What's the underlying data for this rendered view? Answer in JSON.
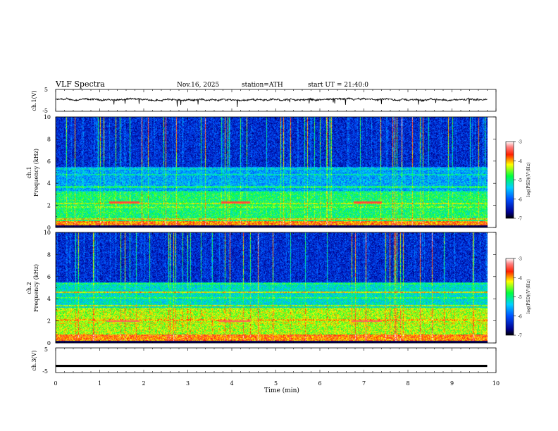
{
  "header": {
    "title": "VLF Spectra",
    "date": "Nov.16, 2025",
    "station": "station=ATH",
    "start": "start UT = 21:40:0"
  },
  "chart_data": [
    {
      "type": "line",
      "ylabel": "ch.1(V)",
      "xlim": [
        0,
        10
      ],
      "ylim": [
        -5,
        5
      ],
      "y_ticks": [
        "5",
        "-5"
      ],
      "description_values": {
        "baseline_v": 0.3,
        "noise_amplitude_v": 0.6
      }
    },
    {
      "type": "heatmap",
      "ylabel": "ch.1\nFrequency (kHz)",
      "ylabel_lines": [
        "ch.1",
        "Frequency (kHz)"
      ],
      "xlim": [
        0,
        9.8
      ],
      "ylim": [
        0,
        10
      ],
      "y_ticks": [
        "0",
        "2",
        "4",
        "6",
        "8",
        "10"
      ],
      "colorbar": {
        "label": "log(PSD)(V²/Hz)",
        "range": [
          -7,
          -3
        ],
        "ticks": [
          "-3",
          "-4",
          "-5",
          "-6",
          "-7"
        ]
      },
      "bands_khz": [
        {
          "f": 0.8,
          "v": -4.2
        },
        {
          "f": 1.9,
          "v": -4.6
        },
        {
          "f": 2.2,
          "v": -4.4
        },
        {
          "f": 3.3,
          "v": -5.1
        },
        {
          "f": 3.7,
          "v": -5.0
        },
        {
          "f": 4.8,
          "v": -5.2
        },
        {
          "f": 5.3,
          "v": -5.3
        }
      ],
      "events": [
        {
          "t0": 1.2,
          "t1": 1.9,
          "f": 2.3,
          "v": -3.5
        },
        {
          "t0": 3.75,
          "t1": 4.4,
          "f": 2.3,
          "v": -3.5
        },
        {
          "t0": 6.75,
          "t1": 7.4,
          "f": 2.3,
          "v": -3.5
        }
      ]
    },
    {
      "type": "heatmap",
      "ylabel": "ch.2\nFrequency (kHz)",
      "ylabel_lines": [
        "ch.2",
        "Frequency (kHz)"
      ],
      "xlim": [
        0,
        9.8
      ],
      "ylim": [
        0,
        10
      ],
      "y_ticks": [
        "0",
        "2",
        "4",
        "6",
        "8",
        "10"
      ],
      "colorbar": {
        "label": "log(PSD)(V²/Hz)",
        "range": [
          -7,
          -3
        ],
        "ticks": [
          "-3",
          "-4",
          "-5",
          "-6",
          "-7"
        ]
      },
      "bands_khz": [
        {
          "f": 0.7,
          "v": -3.8
        },
        {
          "f": 1.8,
          "v": -4.3
        },
        {
          "f": 2.1,
          "v": -4.1
        },
        {
          "f": 3.4,
          "v": -4.4
        },
        {
          "f": 4.1,
          "v": -4.8
        },
        {
          "f": 4.6,
          "v": -4.2
        },
        {
          "f": 5.4,
          "v": -4.9
        }
      ],
      "events": [
        {
          "t0": 1.15,
          "t1": 1.9,
          "f": 2.0,
          "v": -3.4
        },
        {
          "t0": 3.7,
          "t1": 4.4,
          "f": 2.0,
          "v": -3.4
        },
        {
          "t0": 6.7,
          "t1": 7.4,
          "f": 2.0,
          "v": -3.4
        }
      ]
    },
    {
      "type": "line",
      "ylabel": "ch.3(V)",
      "xlim": [
        0,
        10
      ],
      "ylim": [
        -5,
        5
      ],
      "y_ticks": [
        "5",
        "-5"
      ],
      "description_values": {
        "baseline_v": -2.3
      }
    }
  ],
  "x_axis": {
    "label": "Time (min)",
    "ticks": [
      "0",
      "1",
      "2",
      "3",
      "4",
      "5",
      "6",
      "7",
      "8",
      "9",
      "10"
    ]
  }
}
